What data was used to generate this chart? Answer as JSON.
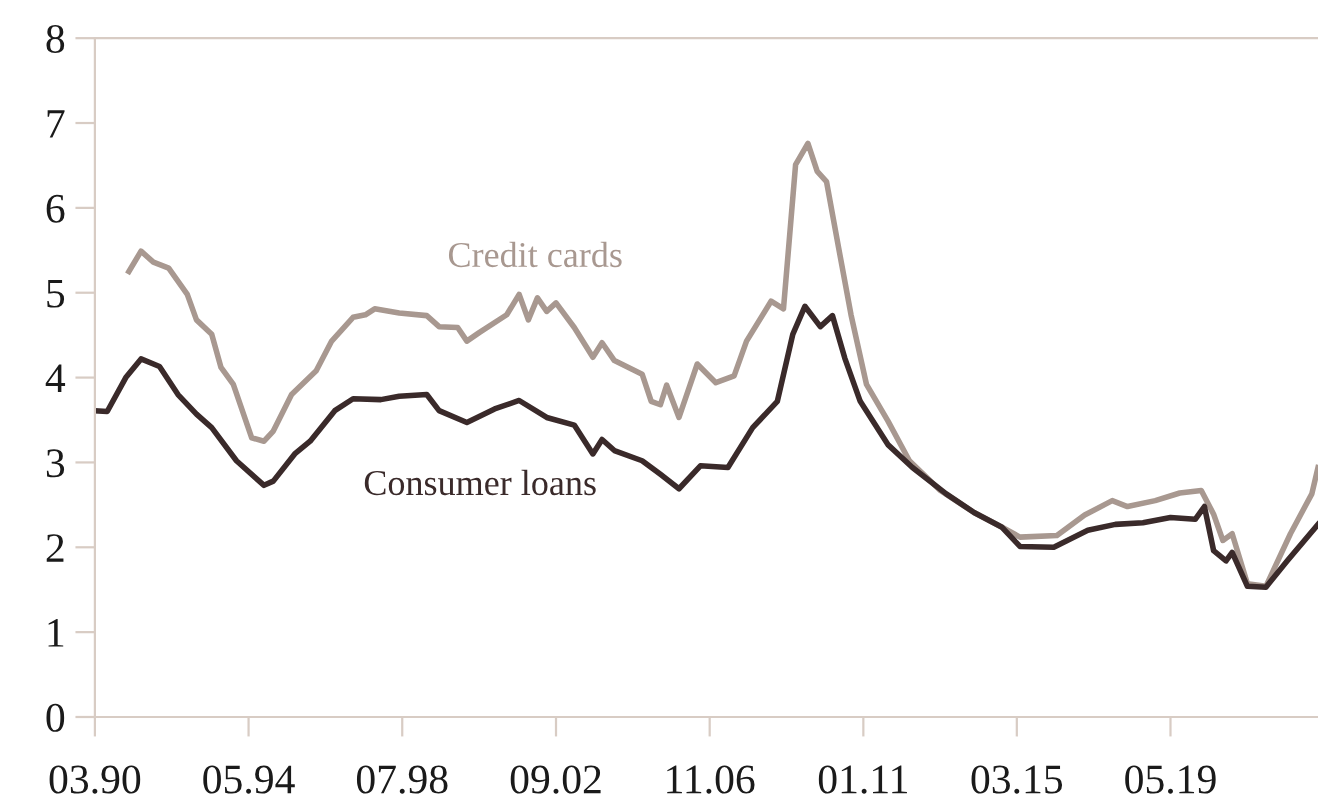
{
  "chart_data": {
    "type": "line",
    "xlim": [
      "1990-03",
      "2023-05"
    ],
    "ylim": [
      0,
      8
    ],
    "yticks": [
      0,
      1,
      2,
      3,
      4,
      5,
      6,
      7,
      8
    ],
    "xticks": [
      {
        "value": "1990-03",
        "label": "03.90"
      },
      {
        "value": "1994-05",
        "label": "05.94"
      },
      {
        "value": "1998-07",
        "label": "07.98"
      },
      {
        "value": "2002-09",
        "label": "09.02"
      },
      {
        "value": "2006-11",
        "label": "11.06"
      },
      {
        "value": "2011-01",
        "label": "01.11"
      },
      {
        "value": "2015-03",
        "label": "03.15"
      },
      {
        "value": "2019-05",
        "label": "05.19"
      }
    ],
    "grid": false,
    "legend": false,
    "marker": "none",
    "line_style": "solid",
    "series": [
      {
        "name": "Credit cards",
        "color": "#a89890",
        "x": [
          "1991-02",
          "1991-06",
          "1991-10",
          "1992-03",
          "1992-09",
          "1992-12",
          "1993-05",
          "1993-08",
          "1993-12",
          "1994-06",
          "1994-10",
          "1995-01",
          "1995-07",
          "1996-03",
          "1996-08",
          "1997-03",
          "1997-07",
          "1997-10",
          "1998-06",
          "1999-03",
          "1999-07",
          "2000-01",
          "2000-04",
          "2000-08",
          "2001-05",
          "2001-09",
          "2001-12",
          "2002-03",
          "2002-06",
          "2002-09",
          "2003-03",
          "2003-09",
          "2003-12",
          "2004-04",
          "2005-01",
          "2005-04",
          "2005-07",
          "2005-09",
          "2006-01",
          "2006-07",
          "2007-01",
          "2007-07",
          "2007-11",
          "2008-07",
          "2008-11",
          "2009-03",
          "2009-07",
          "2009-10",
          "2010-01",
          "2010-05",
          "2010-09",
          "2011-02",
          "2011-09",
          "2012-04",
          "2013-02",
          "2014-01",
          "2014-10",
          "2015-04",
          "2016-04",
          "2017-01",
          "2017-10",
          "2018-03",
          "2018-12",
          "2019-08",
          "2020-03",
          "2020-07",
          "2020-10",
          "2021-01",
          "2021-06",
          "2021-12",
          "2022-08",
          "2023-03",
          "2023-05"
        ],
        "values": [
          5.25,
          5.49,
          5.36,
          5.29,
          4.98,
          4.68,
          4.51,
          4.12,
          3.92,
          3.29,
          3.25,
          3.37,
          3.8,
          4.08,
          4.43,
          4.71,
          4.74,
          4.81,
          4.76,
          4.73,
          4.6,
          4.59,
          4.43,
          4.53,
          4.74,
          4.98,
          4.68,
          4.94,
          4.78,
          4.88,
          4.59,
          4.24,
          4.41,
          4.2,
          4.04,
          3.72,
          3.68,
          3.91,
          3.53,
          4.16,
          3.94,
          4.02,
          4.43,
          4.9,
          4.81,
          6.51,
          6.76,
          6.43,
          6.31,
          5.53,
          4.74,
          3.92,
          3.49,
          3.02,
          2.67,
          2.41,
          2.24,
          2.12,
          2.14,
          2.38,
          2.55,
          2.48,
          2.55,
          2.64,
          2.67,
          2.39,
          2.08,
          2.16,
          1.57,
          1.54,
          2.16,
          2.63,
          2.94
        ]
      },
      {
        "name": "Consumer loans",
        "color": "#3a2a2a",
        "x": [
          "1990-03",
          "1990-07",
          "1991-01",
          "1991-06",
          "1991-12",
          "1992-06",
          "1992-12",
          "1993-05",
          "1994-01",
          "1994-10",
          "1995-01",
          "1995-08",
          "1996-01",
          "1996-09",
          "1997-03",
          "1997-12",
          "1998-06",
          "1999-03",
          "1999-07",
          "2000-04",
          "2001-01",
          "2001-09",
          "2002-06",
          "2003-03",
          "2003-09",
          "2003-12",
          "2004-04",
          "2005-01",
          "2005-07",
          "2006-01",
          "2006-08",
          "2007-05",
          "2008-01",
          "2008-09",
          "2009-02",
          "2009-06",
          "2009-11",
          "2010-03",
          "2010-07",
          "2010-12",
          "2011-09",
          "2012-05",
          "2013-04",
          "2014-01",
          "2014-10",
          "2015-04",
          "2016-03",
          "2017-02",
          "2017-11",
          "2018-08",
          "2019-05",
          "2020-01",
          "2020-04",
          "2020-07",
          "2020-11",
          "2021-01",
          "2021-06",
          "2021-12",
          "2022-07",
          "2023-05"
        ],
        "values": [
          3.61,
          3.6,
          4.0,
          4.22,
          4.13,
          3.8,
          3.57,
          3.41,
          3.02,
          2.73,
          2.78,
          3.1,
          3.25,
          3.61,
          3.75,
          3.74,
          3.78,
          3.8,
          3.61,
          3.47,
          3.63,
          3.73,
          3.53,
          3.44,
          3.1,
          3.27,
          3.14,
          3.02,
          2.86,
          2.69,
          2.96,
          2.94,
          3.41,
          3.72,
          4.51,
          4.84,
          4.6,
          4.73,
          4.23,
          3.72,
          3.21,
          2.94,
          2.63,
          2.41,
          2.24,
          2.01,
          2.0,
          2.2,
          2.27,
          2.29,
          2.35,
          2.33,
          2.48,
          1.96,
          1.84,
          1.94,
          1.54,
          1.53,
          1.84,
          2.27
        ]
      }
    ]
  }
}
